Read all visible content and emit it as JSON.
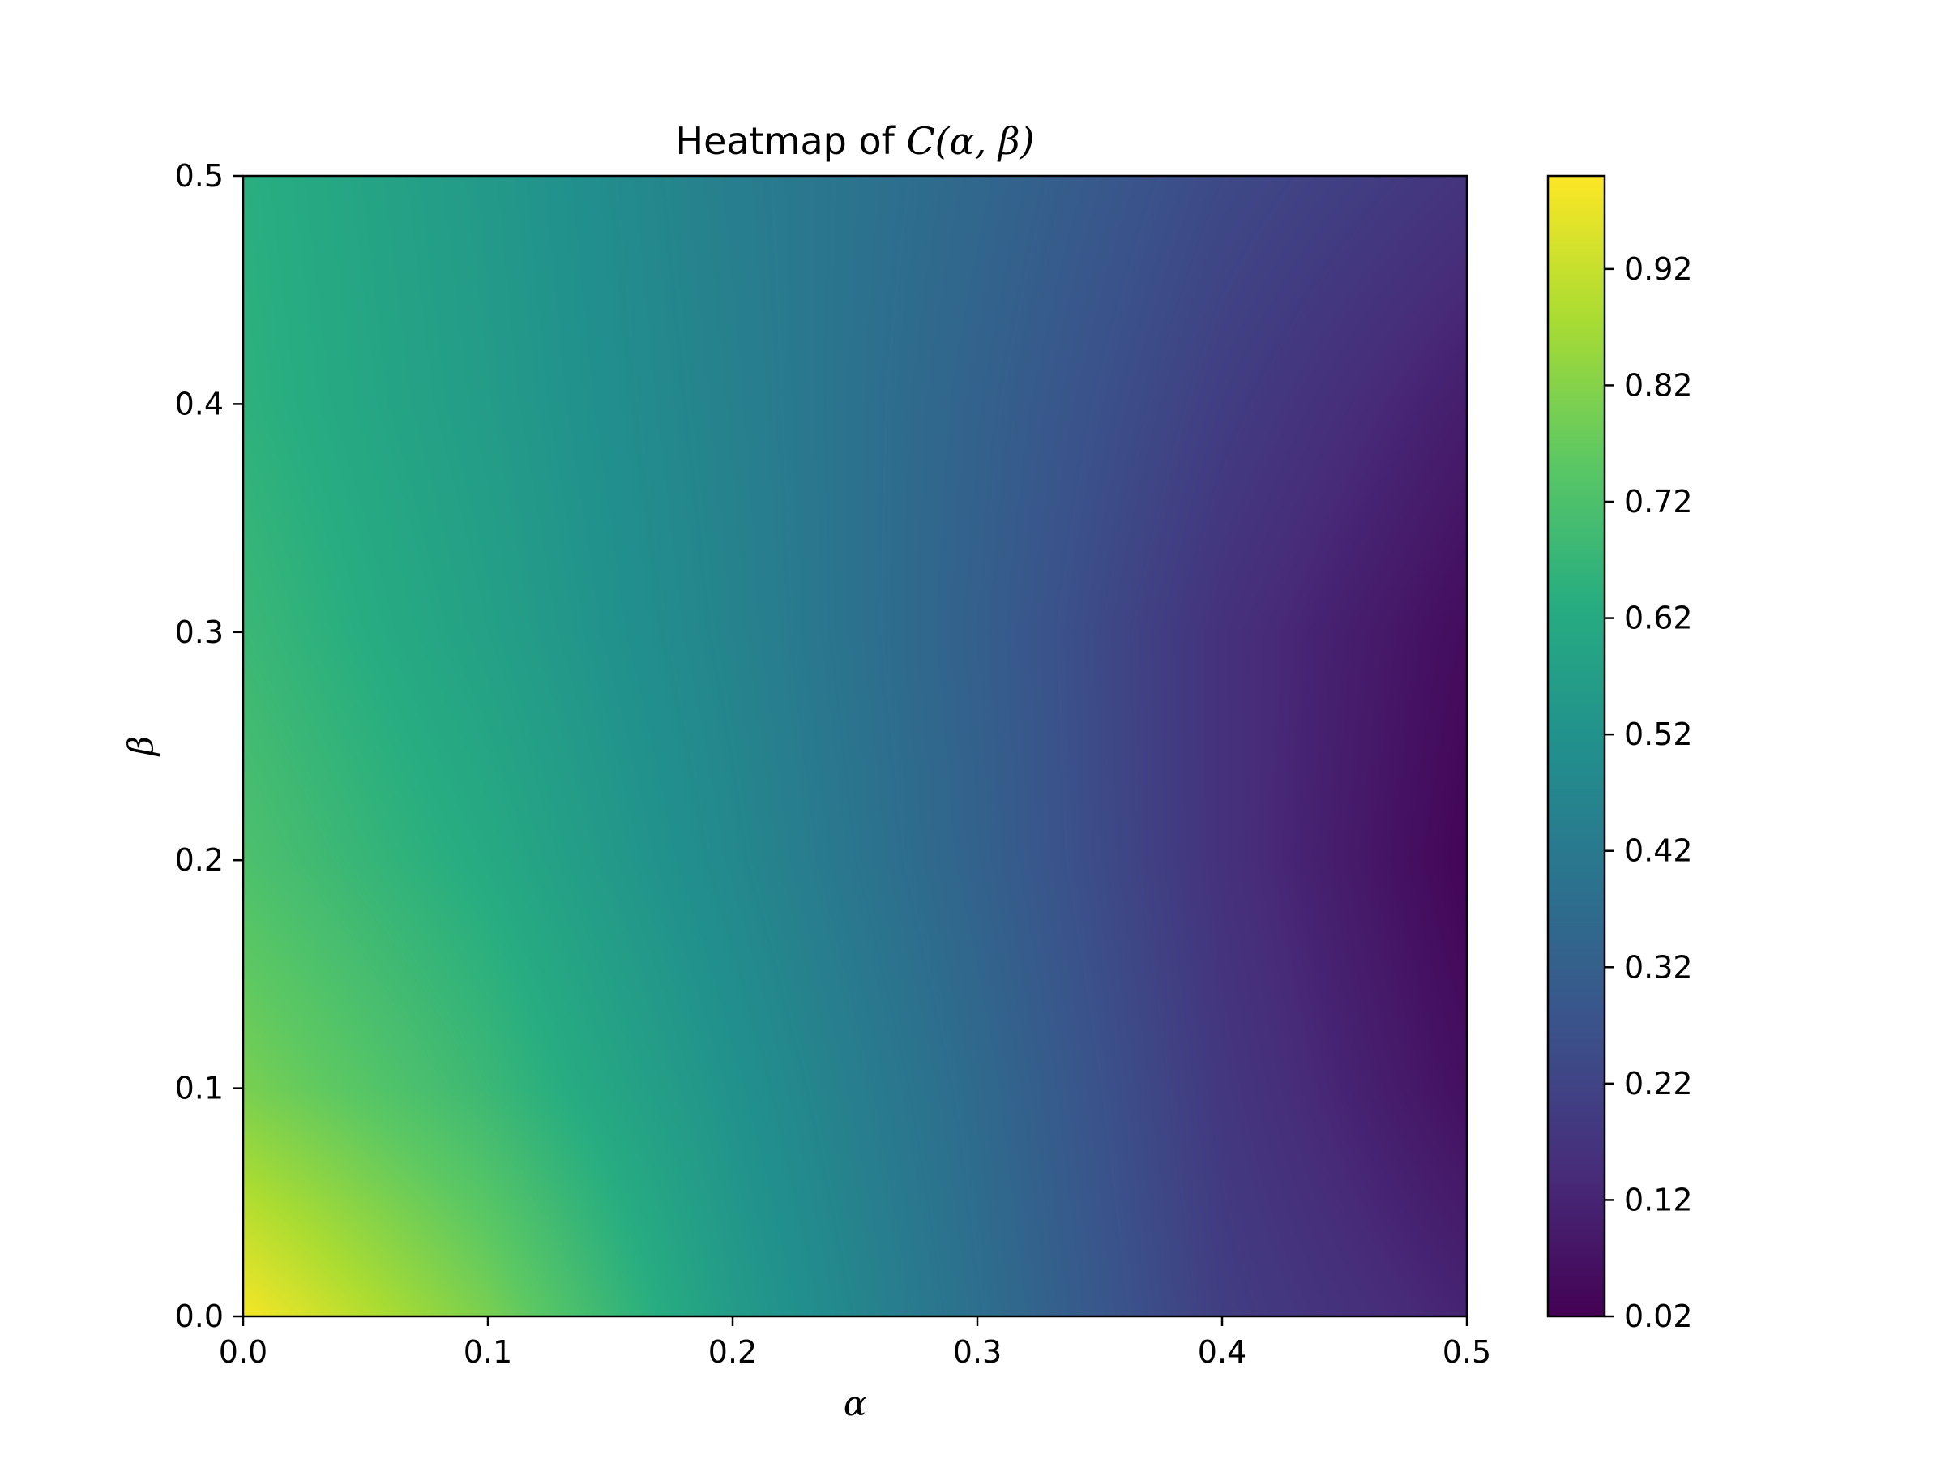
{
  "chart_data": {
    "type": "heatmap",
    "title_prefix": "Heatmap of ",
    "title_math": "C(α, β)",
    "xlabel": "α",
    "ylabel": "β",
    "xlim": [
      0.0,
      0.5
    ],
    "ylim": [
      0.0,
      0.5
    ],
    "x_ticks": [
      0.0,
      0.1,
      0.2,
      0.3,
      0.4,
      0.5
    ],
    "x_tick_labels": [
      "0.0",
      "0.1",
      "0.2",
      "0.3",
      "0.4",
      "0.5"
    ],
    "y_ticks": [
      0.0,
      0.1,
      0.2,
      0.3,
      0.4,
      0.5
    ],
    "y_tick_labels": [
      "0.0",
      "0.1",
      "0.2",
      "0.3",
      "0.4",
      "0.5"
    ],
    "colormap": "viridis",
    "colorbar": {
      "range": [
        0.02,
        1.0
      ],
      "ticks": [
        0.02,
        0.12,
        0.22,
        0.32,
        0.42,
        0.52,
        0.62,
        0.72,
        0.82,
        0.92
      ],
      "tick_labels": [
        "0.02",
        "0.12",
        "0.22",
        "0.32",
        "0.42",
        "0.52",
        "0.62",
        "0.72",
        "0.82",
        "0.92"
      ]
    },
    "grid": false,
    "legend": "none",
    "field_samples": {
      "alpha": [
        0.0,
        0.1,
        0.2,
        0.3,
        0.4,
        0.5
      ],
      "beta": [
        0.0,
        0.1,
        0.2,
        0.3,
        0.4,
        0.5
      ],
      "values": [
        [
          0.99,
          0.8,
          0.56,
          0.38,
          0.2,
          0.12
        ],
        [
          0.8,
          0.68,
          0.52,
          0.36,
          0.18,
          0.06
        ],
        [
          0.72,
          0.62,
          0.48,
          0.33,
          0.16,
          0.03
        ],
        [
          0.68,
          0.58,
          0.46,
          0.32,
          0.16,
          0.05
        ],
        [
          0.65,
          0.56,
          0.45,
          0.33,
          0.2,
          0.1
        ],
        [
          0.64,
          0.55,
          0.44,
          0.35,
          0.24,
          0.17
        ]
      ]
    }
  }
}
